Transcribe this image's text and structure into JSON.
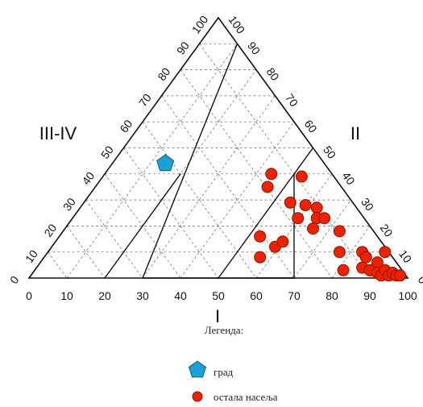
{
  "chart_data": {
    "type": "scatter",
    "subtype": "ternary",
    "axes": {
      "bottom": {
        "label": "I",
        "ticks": [
          "0",
          "10",
          "20",
          "30",
          "40",
          "50",
          "60",
          "70",
          "80",
          "90",
          "100"
        ]
      },
      "left": {
        "label": "III-IV",
        "ticks": [
          "100",
          "90",
          "80",
          "70",
          "60",
          "50",
          "40",
          "30",
          "20",
          "10",
          "0"
        ]
      },
      "right": {
        "label": "II",
        "ticks": [
          "100",
          "90",
          "80",
          "70",
          "60",
          "50",
          "40",
          "30",
          "20",
          "10",
          "0"
        ]
      }
    },
    "grid": true,
    "grid_step": 10,
    "zone_boundaries": [
      {
        "a": [
          0.5,
          0.0,
          0.5
        ],
        "b": [
          0.5,
          0.5,
          0.0
        ]
      },
      {
        "a": [
          0.2,
          0.4,
          0.4
        ],
        "b": [
          0.2,
          0.8,
          0.0
        ]
      },
      {
        "a": [
          0.6,
          0.4,
          0.0
        ],
        "b": [
          0.7,
          0.3,
          0.0
        ]
      },
      {
        "a": [
          0.7,
          0.3,
          0.0
        ],
        "b": [
          0.5,
          0.5,
          0.0
        ]
      },
      {
        "a": [
          0.5,
          0.1,
          0.4
        ],
        "b": [
          0.7,
          0.3,
          0.0
        ]
      },
      {
        "a": [
          0.5,
          0.0,
          0.5
        ],
        "b": [
          0.3,
          0.0,
          0.7
        ]
      },
      {
        "a": [
          0.3,
          0.7,
          0.0
        ],
        "b": [
          0.1,
          0.0,
          0.9
        ]
      },
      {
        "a": [
          0.3,
          0.7,
          0.0
        ],
        "b": [
          0.5,
          0.5,
          0.0
        ]
      }
    ],
    "series": [
      {
        "name": "град",
        "marker": "pentagon",
        "color": "#1a9fd6",
        "points": [
          [
            36,
            44
          ]
        ]
      },
      {
        "name": "остала насеља",
        "marker": "circle",
        "color": "#ee2200",
        "points": [
          [
            64,
            40
          ],
          [
            72,
            39
          ],
          [
            63,
            35
          ],
          [
            69,
            29
          ],
          [
            73,
            28
          ],
          [
            76,
            27
          ],
          [
            76,
            23
          ],
          [
            78,
            23
          ],
          [
            71,
            23
          ],
          [
            75,
            19
          ],
          [
            82,
            18
          ],
          [
            61,
            16
          ],
          [
            65,
            12
          ],
          [
            67,
            14
          ],
          [
            82,
            10
          ],
          [
            61,
            8
          ],
          [
            88,
            10
          ],
          [
            89,
            8
          ],
          [
            94,
            10
          ],
          [
            92,
            6
          ],
          [
            88,
            4
          ],
          [
            90,
            3
          ],
          [
            92,
            2
          ],
          [
            93,
            1
          ],
          [
            94,
            3
          ],
          [
            95,
            1
          ],
          [
            96,
            2
          ],
          [
            97,
            1
          ],
          [
            98,
            1
          ],
          [
            83,
            3
          ]
        ]
      }
    ],
    "legend": {
      "title": "Легенда:",
      "placement": "bottom-center"
    }
  },
  "colors": {
    "frame": "#111111",
    "grid": "#666666",
    "city": "#1a9fd6",
    "settlements": "#ee2200"
  }
}
